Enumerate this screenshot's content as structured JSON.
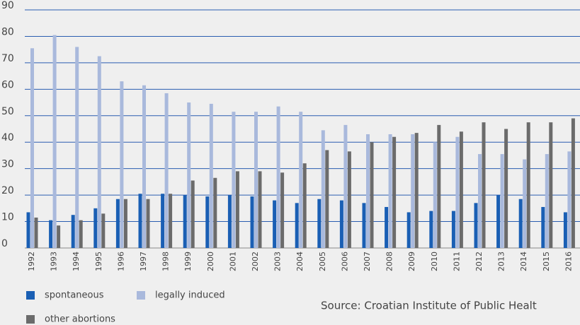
{
  "chart_data": {
    "type": "bar",
    "categories": [
      "1992",
      "1993",
      "1994",
      "1995",
      "1996",
      "1997",
      "1998",
      "1999",
      "2000",
      "2001",
      "2002",
      "2003",
      "2004",
      "2005",
      "2006",
      "2007",
      "2008",
      "2009",
      "2010",
      "2011",
      "2012",
      "2013",
      "2014",
      "2015",
      "2016"
    ],
    "series": [
      {
        "name": "spontaneous",
        "color": "#1a5fb4",
        "values": [
          13.5,
          10.5,
          12.5,
          15,
          18.5,
          20.5,
          20.5,
          20,
          19.5,
          20,
          19.5,
          18,
          17,
          18.5,
          18,
          17,
          15.5,
          13.5,
          14,
          14,
          17,
          20,
          18.5,
          15.5,
          13.5
        ]
      },
      {
        "name": "legally induced",
        "color": "#a9b9dc",
        "values": [
          75.5,
          80.5,
          76,
          72.5,
          63,
          61.5,
          58.5,
          55,
          54.5,
          51.5,
          51.5,
          53.5,
          51.5,
          44.5,
          46.5,
          43,
          43,
          43,
          40,
          42,
          35.5,
          35.5,
          33.5,
          35.5,
          36.5
        ]
      },
      {
        "name": "other abortions",
        "color": "#6b6b6b",
        "values": [
          11.5,
          8.5,
          10.5,
          13,
          18.5,
          18.5,
          20.5,
          25.5,
          26.5,
          29,
          29,
          28.5,
          32,
          37,
          36.5,
          40,
          42,
          43.5,
          46.5,
          44,
          47.5,
          45,
          47.5,
          47.5,
          49
        ]
      }
    ],
    "ylim": [
      0,
      90
    ],
    "yticks": [
      0,
      10,
      20,
      30,
      40,
      50,
      60,
      70,
      80,
      90
    ],
    "grid": true,
    "source": "Source: Croatian Institute of Public Healt"
  }
}
